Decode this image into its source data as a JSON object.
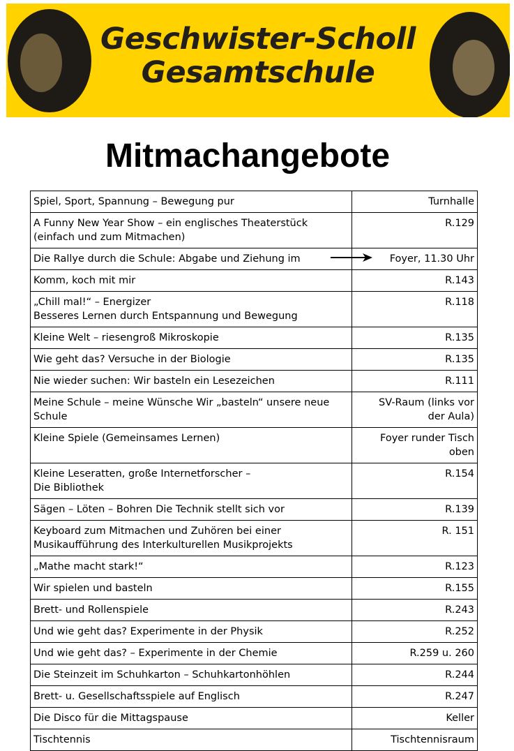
{
  "header": {
    "title_line1": "Geschwister-Scholl",
    "title_line2": "Gesamtschule"
  },
  "heading": "Mitmachangebote",
  "table": {
    "rows": [
      [
        "Spiel, Sport, Spannung – Bewegung pur",
        "Turnhalle"
      ],
      [
        "A Funny New Year Show – ein englisches Theaterstück\n(einfach und zum Mitmachen)",
        "R.129"
      ],
      [
        "Die Rallye durch die Schule: Abgabe und Ziehung im",
        "Foyer, 11.30 Uhr"
      ],
      [
        "Komm, koch mit mir",
        "R.143"
      ],
      [
        "„Chill mal!“ – Energizer\nBesseres Lernen durch Entspannung und Bewegung",
        "R.118"
      ],
      [
        "Kleine Welt – riesengroß   Mikroskopie",
        "R.135"
      ],
      [
        "Wie geht das? Versuche in der Biologie",
        "R.135"
      ],
      [
        "Nie wieder suchen: Wir basteln ein Lesezeichen",
        "R.111"
      ],
      [
        "Meine Schule – meine Wünsche  Wir „basteln“ unsere neue\nSchule",
        "SV-Raum (links vor\nder Aula)"
      ],
      [
        "Kleine Spiele (Gemeinsames Lernen)",
        "Foyer runder Tisch\noben"
      ],
      [
        "Kleine Leseratten, große Internetforscher –\nDie Bibliothek",
        "R.154"
      ],
      [
        "Sägen – Löten – Bohren   Die Technik stellt sich vor",
        "R.139"
      ],
      [
        "Keyboard zum Mitmachen   und    Zuhören bei einer\nMusikaufführung des Interkulturellen Musikprojekts",
        "R. 151"
      ],
      [
        "„Mathe macht stark!“",
        "R.123"
      ],
      [
        "Wir spielen und basteln",
        "R.155"
      ],
      [
        "Brett- und Rollenspiele",
        "R.243"
      ],
      [
        "Und wie geht das? Experimente in der Physik",
        "R.252"
      ],
      [
        "Und wie geht das? – Experimente in der Chemie",
        "R.259 u. 260"
      ],
      [
        "Die Steinzeit im Schuhkarton – Schuhkartonhöhlen",
        "R.244"
      ],
      [
        "Brett- u. Gesellschaftsspiele auf Englisch",
        "R.247"
      ],
      [
        "Die Disco für die Mittagspause",
        "Keller"
      ],
      [
        "Tischtennis",
        "Tischtennisraum"
      ]
    ]
  }
}
